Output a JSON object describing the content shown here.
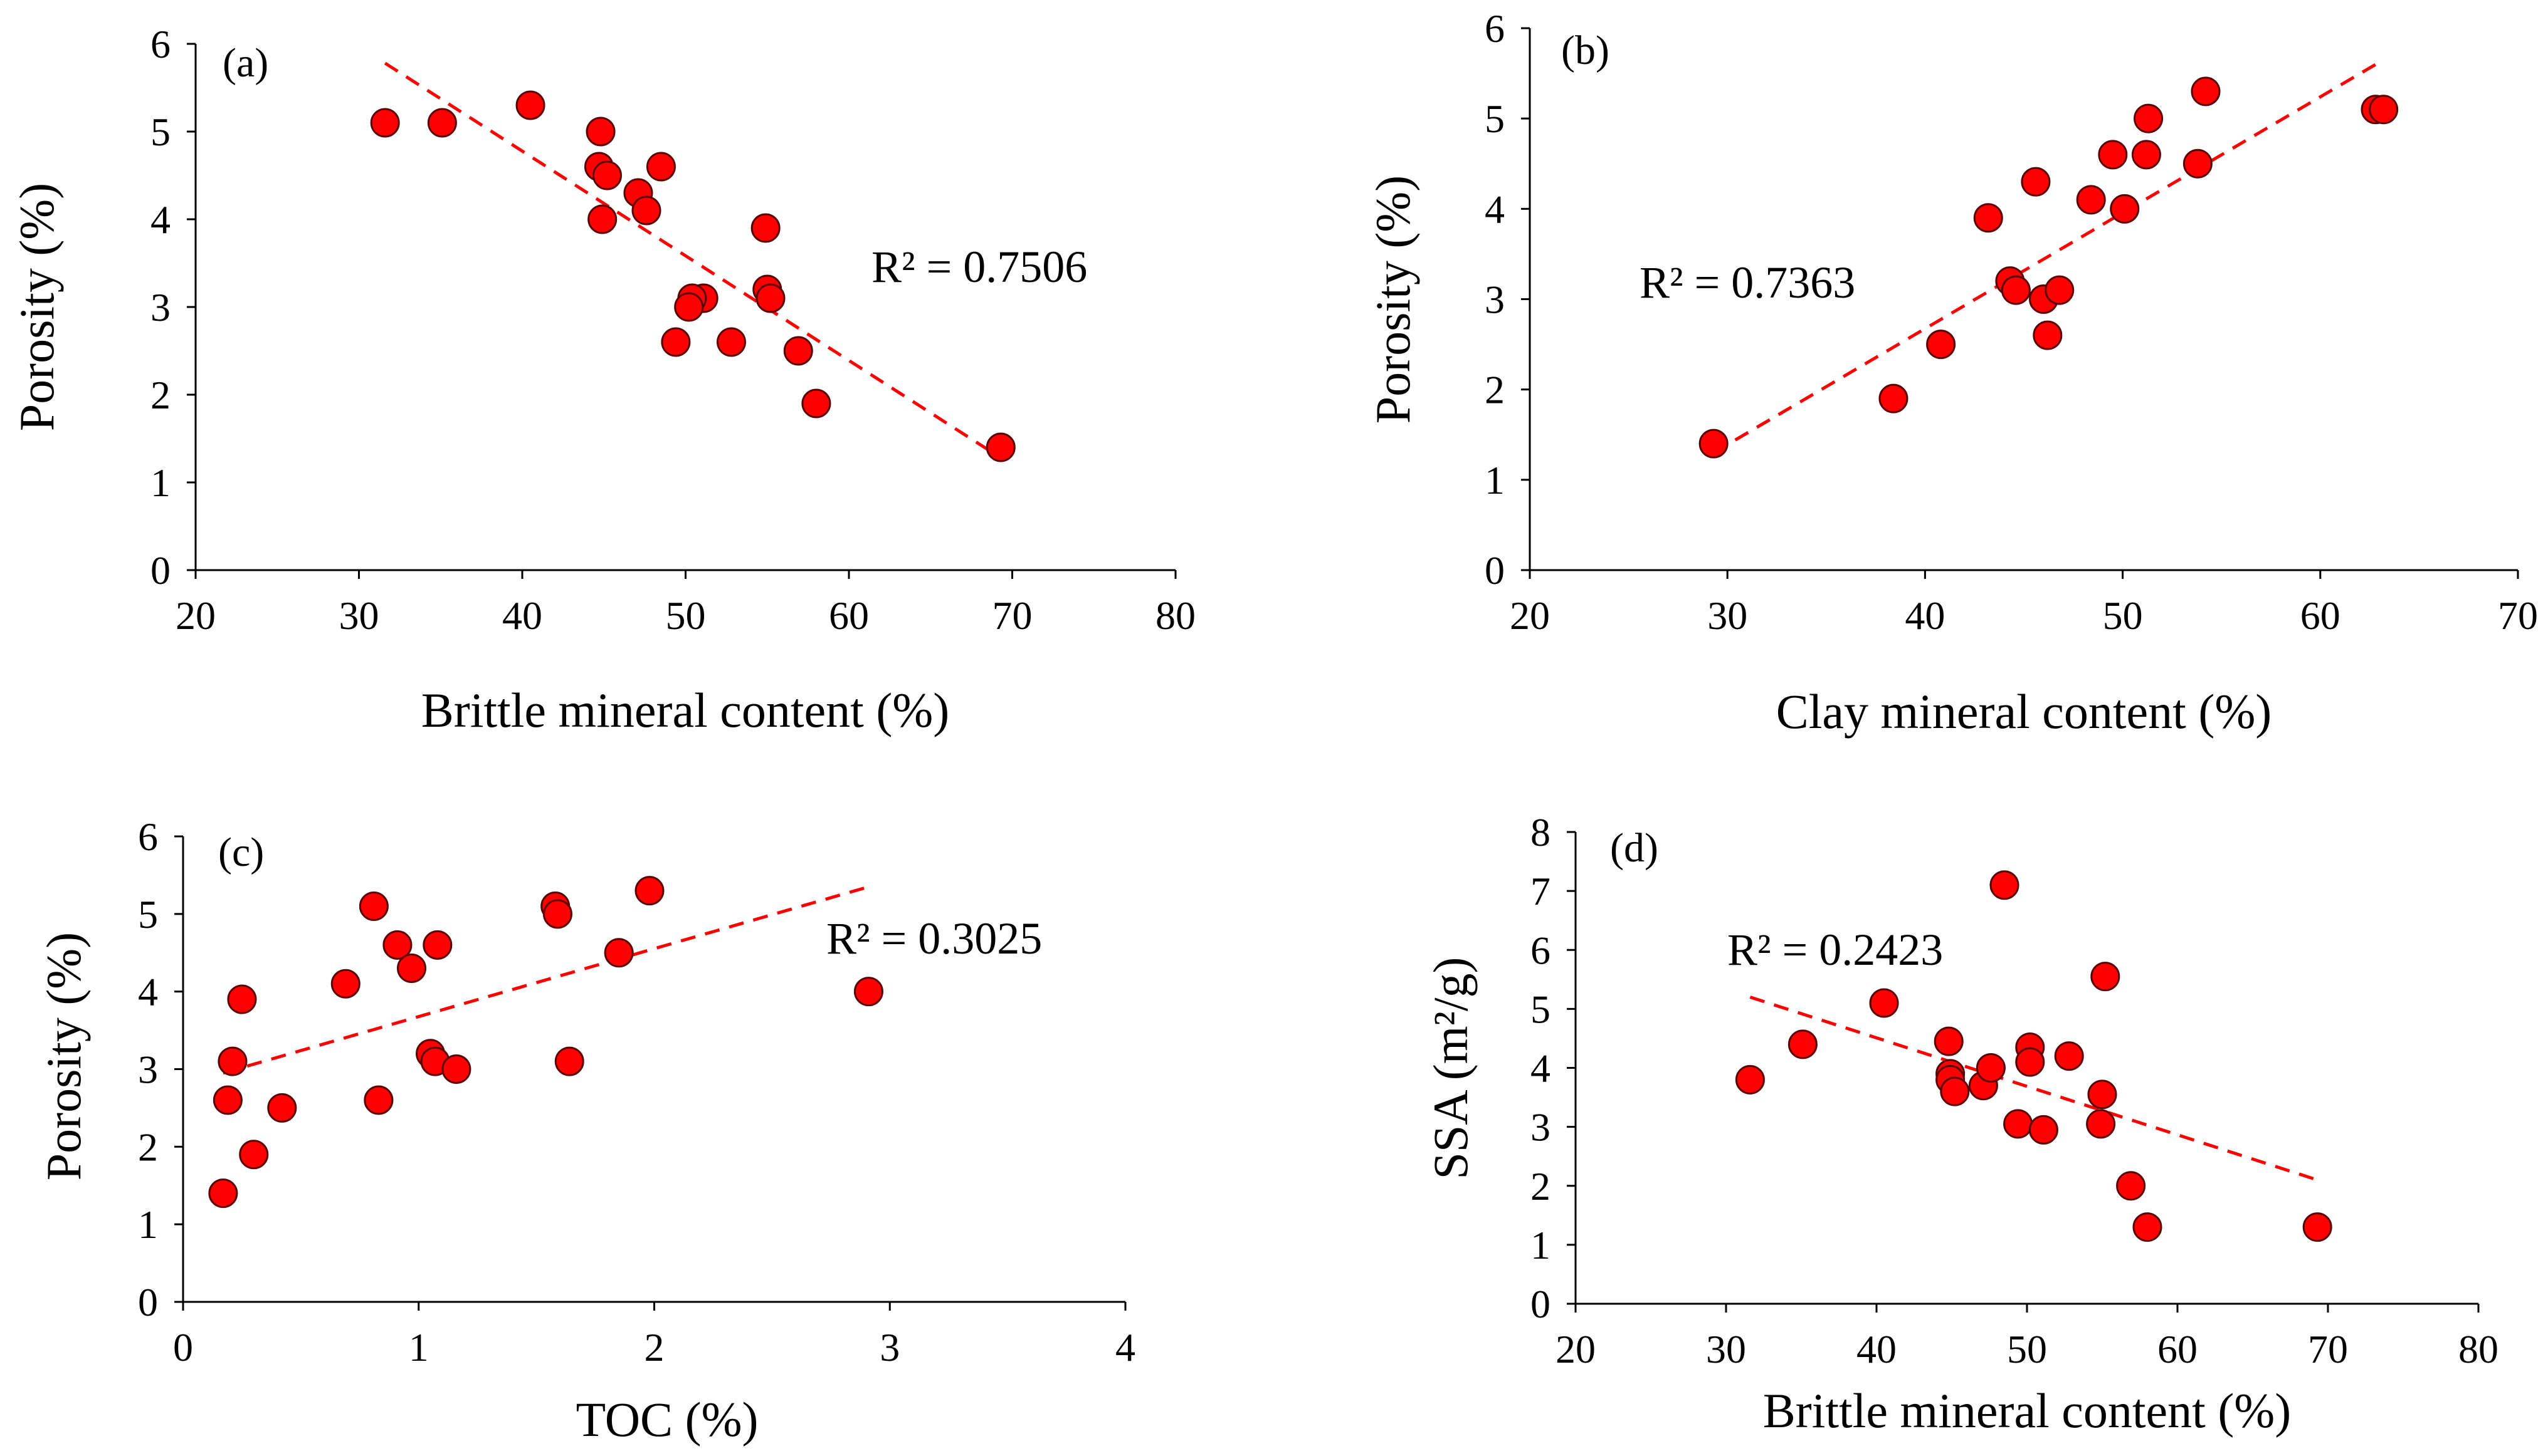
{
  "figure": {
    "style": {
      "point_fill": "#ff0000",
      "point_stroke": "#5a0000",
      "trend_color": "#ff0000",
      "axis_color": "#000000"
    }
  },
  "chart_data": [
    {
      "type": "scatter",
      "panel_label": "(a)",
      "xlabel": "Brittle mineral content (%)",
      "ylabel": "Porosity (%)",
      "xlim": [
        20,
        80
      ],
      "ylim": [
        0,
        6
      ],
      "xticks": [
        20,
        30,
        40,
        50,
        60,
        70,
        80
      ],
      "yticks": [
        0,
        1,
        2,
        3,
        4,
        5,
        6
      ],
      "r2_text": "R² = 0.7506",
      "points": [
        {
          "x": 31.6,
          "y": 5.1
        },
        {
          "x": 35.1,
          "y": 5.1
        },
        {
          "x": 40.5,
          "y": 5.3
        },
        {
          "x": 44.8,
          "y": 5.0
        },
        {
          "x": 44.7,
          "y": 4.6
        },
        {
          "x": 45.2,
          "y": 4.5
        },
        {
          "x": 48.5,
          "y": 4.6
        },
        {
          "x": 47.1,
          "y": 4.3
        },
        {
          "x": 47.6,
          "y": 4.1
        },
        {
          "x": 44.9,
          "y": 4.0
        },
        {
          "x": 54.9,
          "y": 3.9
        },
        {
          "x": 51.1,
          "y": 3.1
        },
        {
          "x": 50.4,
          "y": 3.1
        },
        {
          "x": 50.2,
          "y": 3.0
        },
        {
          "x": 55.0,
          "y": 3.2
        },
        {
          "x": 55.2,
          "y": 3.1
        },
        {
          "x": 49.4,
          "y": 2.6
        },
        {
          "x": 52.8,
          "y": 2.6
        },
        {
          "x": 56.9,
          "y": 2.5
        },
        {
          "x": 58.0,
          "y": 1.9
        },
        {
          "x": 69.3,
          "y": 1.4
        }
      ],
      "trendline": {
        "x": [
          31.6,
          69.3
        ],
        "y": [
          5.78,
          1.28
        ]
      }
    },
    {
      "type": "scatter",
      "panel_label": "(b)",
      "xlabel": "Clay mineral content (%)",
      "ylabel": "Porosity (%)",
      "xlim": [
        20,
        70
      ],
      "ylim": [
        0,
        6
      ],
      "xticks": [
        20,
        30,
        40,
        50,
        60,
        70
      ],
      "yticks": [
        0,
        1,
        2,
        3,
        4,
        5,
        6
      ],
      "r2_text": "R² = 0.7363",
      "points": [
        {
          "x": 29.3,
          "y": 1.4
        },
        {
          "x": 38.4,
          "y": 1.9
        },
        {
          "x": 40.8,
          "y": 2.5
        },
        {
          "x": 43.2,
          "y": 3.9
        },
        {
          "x": 44.3,
          "y": 3.2
        },
        {
          "x": 44.6,
          "y": 3.1
        },
        {
          "x": 45.6,
          "y": 4.3
        },
        {
          "x": 46.0,
          "y": 3.0
        },
        {
          "x": 46.2,
          "y": 2.6
        },
        {
          "x": 46.8,
          "y": 3.1
        },
        {
          "x": 48.4,
          "y": 4.1
        },
        {
          "x": 49.5,
          "y": 4.6
        },
        {
          "x": 50.1,
          "y": 4.0
        },
        {
          "x": 51.2,
          "y": 4.6
        },
        {
          "x": 51.3,
          "y": 5.0
        },
        {
          "x": 53.8,
          "y": 4.5
        },
        {
          "x": 54.2,
          "y": 5.3
        },
        {
          "x": 62.8,
          "y": 5.1
        },
        {
          "x": 63.2,
          "y": 5.1
        }
      ],
      "trendline": {
        "x": [
          29.3,
          63.2
        ],
        "y": [
          1.3,
          5.65
        ]
      }
    },
    {
      "type": "scatter",
      "panel_label": "(c)",
      "xlabel": "TOC (%)",
      "ylabel": "Porosity (%)",
      "xlim": [
        0,
        4
      ],
      "ylim": [
        0,
        6
      ],
      "xticks": [
        0,
        1,
        2,
        3,
        4
      ],
      "yticks": [
        0,
        1,
        2,
        3,
        4,
        5,
        6
      ],
      "r2_text": "R² = 0.3025",
      "points": [
        {
          "x": 0.17,
          "y": 1.4
        },
        {
          "x": 0.19,
          "y": 2.6
        },
        {
          "x": 0.21,
          "y": 3.1
        },
        {
          "x": 0.25,
          "y": 3.9
        },
        {
          "x": 0.3,
          "y": 1.9
        },
        {
          "x": 0.42,
          "y": 2.5
        },
        {
          "x": 0.69,
          "y": 4.1
        },
        {
          "x": 0.81,
          "y": 5.1
        },
        {
          "x": 0.83,
          "y": 2.6
        },
        {
          "x": 0.91,
          "y": 4.6
        },
        {
          "x": 0.97,
          "y": 4.3
        },
        {
          "x": 1.05,
          "y": 3.2
        },
        {
          "x": 1.07,
          "y": 3.1
        },
        {
          "x": 1.08,
          "y": 4.6
        },
        {
          "x": 1.16,
          "y": 3.0
        },
        {
          "x": 1.58,
          "y": 5.1
        },
        {
          "x": 1.59,
          "y": 5.0
        },
        {
          "x": 1.64,
          "y": 3.1
        },
        {
          "x": 1.85,
          "y": 4.5
        },
        {
          "x": 1.98,
          "y": 5.3
        },
        {
          "x": 2.91,
          "y": 4.0
        }
      ],
      "trendline": {
        "x": [
          0.17,
          2.91
        ],
        "y": [
          2.95,
          5.35
        ]
      }
    },
    {
      "type": "scatter",
      "panel_label": "(d)",
      "xlabel": "Brittle mineral content (%)",
      "ylabel": "SSA (m²/g)",
      "xlim": [
        20,
        80
      ],
      "ylim": [
        0,
        8
      ],
      "xticks": [
        20,
        30,
        40,
        50,
        60,
        70,
        80
      ],
      "yticks": [
        0,
        1,
        2,
        3,
        4,
        5,
        6,
        7,
        8
      ],
      "r2_text": "R² = 0.2423",
      "points": [
        {
          "x": 31.6,
          "y": 3.8
        },
        {
          "x": 35.1,
          "y": 4.4
        },
        {
          "x": 40.5,
          "y": 5.1
        },
        {
          "x": 44.8,
          "y": 4.45
        },
        {
          "x": 44.9,
          "y": 3.9
        },
        {
          "x": 44.9,
          "y": 3.8
        },
        {
          "x": 45.2,
          "y": 3.6
        },
        {
          "x": 47.1,
          "y": 3.7
        },
        {
          "x": 47.6,
          "y": 4.0
        },
        {
          "x": 48.5,
          "y": 7.1
        },
        {
          "x": 49.4,
          "y": 3.05
        },
        {
          "x": 50.2,
          "y": 4.35
        },
        {
          "x": 50.2,
          "y": 4.1
        },
        {
          "x": 51.1,
          "y": 2.95
        },
        {
          "x": 52.8,
          "y": 4.2
        },
        {
          "x": 54.9,
          "y": 3.05
        },
        {
          "x": 55.0,
          "y": 3.55
        },
        {
          "x": 55.2,
          "y": 5.55
        },
        {
          "x": 56.9,
          "y": 2.0
        },
        {
          "x": 58.0,
          "y": 1.3
        },
        {
          "x": 69.3,
          "y": 1.3
        }
      ],
      "trendline": {
        "x": [
          31.6,
          69.3
        ],
        "y": [
          5.2,
          2.1
        ]
      }
    }
  ]
}
